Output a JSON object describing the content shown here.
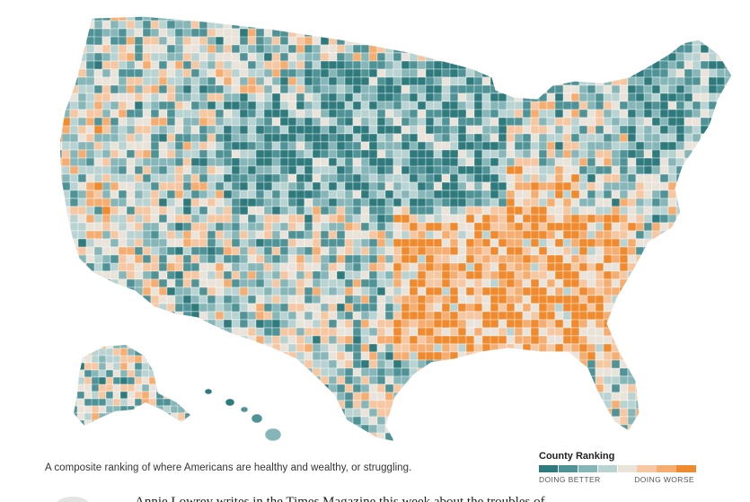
{
  "caption": "A composite ranking of where Americans are healthy and wealthy, or struggling.",
  "legend": {
    "title": "County Ranking",
    "low_label": "DOING BETTER",
    "high_label": "DOING WORSE",
    "colors": [
      "#2e7a7c",
      "#4f9396",
      "#86b6b8",
      "#b9d3d2",
      "#e9e3da",
      "#f5c7a2",
      "#f5ad72",
      "#ef8a2e"
    ]
  },
  "article_snippet": "Annie Lowrey writes in the Times Magazine this week about the troubles of"
}
